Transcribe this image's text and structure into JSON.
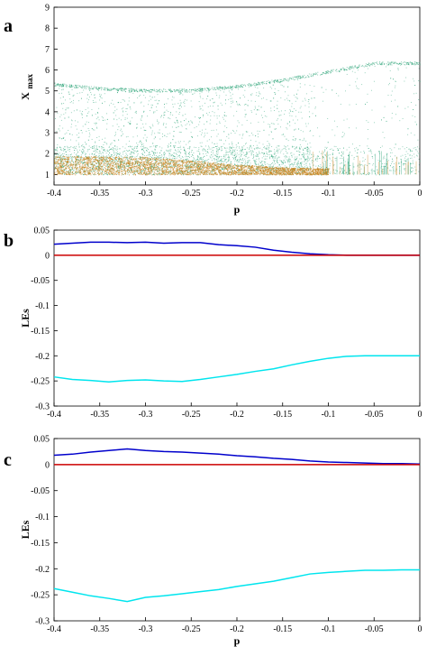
{
  "figure": {
    "panel_labels": [
      "a",
      "b",
      "c"
    ]
  },
  "chart_data": [
    {
      "type": "scatter",
      "panel": "a",
      "xlabel": "p",
      "ylabel": "X",
      "ylabel_subscript": "max",
      "xlim": [
        -0.4,
        0
      ],
      "ylim": [
        0.5,
        9
      ],
      "xticks": [
        "-0.4",
        "-0.35",
        "-0.3",
        "-0.25",
        "-0.2",
        "-0.15",
        "-0.1",
        "-0.05",
        "0"
      ],
      "yticks": [
        "1",
        "2",
        "3",
        "4",
        "5",
        "6",
        "7",
        "8",
        "9"
      ],
      "grid": false,
      "colors": {
        "main": "#1f9e6f",
        "secondary": "#c8851f"
      },
      "series": [
        {
          "points": "green bifurcation cloud, upper envelope x-values",
          "x": [
            -0.4,
            -0.35,
            -0.3,
            -0.25,
            -0.2,
            -0.15,
            -0.1,
            -0.05
          ],
          "y": [
            5.4,
            5.2,
            5.1,
            5.1,
            5.3,
            5.6,
            6.0,
            6.4
          ]
        },
        {
          "points": "orange dense band top",
          "x": [
            -0.4,
            -0.3,
            -0.2,
            -0.15,
            -0.1
          ],
          "y": [
            1.9,
            1.85,
            1.5,
            1.35,
            1.3
          ]
        }
      ]
    },
    {
      "type": "line",
      "panel": "b",
      "xlabel": "",
      "ylabel": "LEs",
      "xlim": [
        -0.4,
        0
      ],
      "ylim": [
        -0.3,
        0.05
      ],
      "xticks": [
        "-0.4",
        "-0.35",
        "-0.3",
        "-0.25",
        "-0.2",
        "-0.15",
        "-0.1",
        "-0.05",
        "0"
      ],
      "yticks": [
        "0.05",
        "0",
        "-0.05",
        "-0.1",
        "-0.15",
        "-0.2",
        "-0.25",
        "-0.3"
      ],
      "grid": false,
      "x": [
        -0.4,
        -0.38,
        -0.36,
        -0.34,
        -0.32,
        -0.3,
        -0.28,
        -0.26,
        -0.24,
        -0.22,
        -0.2,
        -0.18,
        -0.16,
        -0.14,
        -0.12,
        -0.1,
        -0.08,
        -0.06,
        -0.04,
        -0.02,
        0
      ],
      "series": [
        {
          "color": "#0000cc",
          "values": [
            0.022,
            0.024,
            0.026,
            0.026,
            0.025,
            0.026,
            0.024,
            0.025,
            0.025,
            0.021,
            0.019,
            0.016,
            0.01,
            0.006,
            0.003,
            0.001,
            0.0,
            0.0,
            0.0,
            0.0,
            0.0
          ]
        },
        {
          "color": "#cc0000",
          "values": [
            0.0,
            0.0,
            0.0,
            0.0,
            0.0,
            0.0,
            0.0,
            0.0,
            0.0,
            0.0,
            0.0,
            0.0,
            0.0,
            0.0,
            0.0,
            0.0,
            0.0,
            0.0,
            0.0,
            0.0,
            0.0
          ]
        },
        {
          "color": "#00e5ee",
          "values": [
            -0.242,
            -0.247,
            -0.249,
            -0.252,
            -0.249,
            -0.248,
            -0.25,
            -0.251,
            -0.247,
            -0.242,
            -0.237,
            -0.231,
            -0.226,
            -0.218,
            -0.211,
            -0.205,
            -0.201,
            -0.2,
            -0.2,
            -0.2,
            -0.2
          ]
        }
      ]
    },
    {
      "type": "line",
      "panel": "c",
      "xlabel": "p",
      "ylabel": "LEs",
      "xlim": [
        -0.4,
        0
      ],
      "ylim": [
        -0.3,
        0.05
      ],
      "xticks": [
        "-0.4",
        "-0.35",
        "-0.3",
        "-0.25",
        "-0.2",
        "-0.15",
        "-0.1",
        "-0.05",
        "0"
      ],
      "yticks": [
        "0.05",
        "0",
        "-0.05",
        "-0.1",
        "-0.15",
        "-0.2",
        "-0.25",
        "-0.3"
      ],
      "grid": false,
      "x": [
        -0.4,
        -0.38,
        -0.36,
        -0.34,
        -0.32,
        -0.3,
        -0.28,
        -0.26,
        -0.24,
        -0.22,
        -0.2,
        -0.18,
        -0.16,
        -0.14,
        -0.12,
        -0.1,
        -0.08,
        -0.06,
        -0.04,
        -0.02,
        0
      ],
      "series": [
        {
          "color": "#0000cc",
          "values": [
            0.018,
            0.02,
            0.024,
            0.027,
            0.03,
            0.027,
            0.025,
            0.024,
            0.022,
            0.02,
            0.017,
            0.015,
            0.012,
            0.01,
            0.007,
            0.005,
            0.004,
            0.003,
            0.002,
            0.002,
            0.001
          ]
        },
        {
          "color": "#cc0000",
          "values": [
            0.0,
            0.0,
            0.0,
            0.0,
            0.0,
            0.0,
            0.0,
            0.0,
            0.0,
            0.0,
            0.0,
            0.0,
            0.0,
            0.0,
            0.0,
            0.0,
            0.0,
            0.0,
            0.0,
            0.0,
            0.0
          ]
        },
        {
          "color": "#00e5ee",
          "values": [
            -0.238,
            -0.245,
            -0.252,
            -0.257,
            -0.263,
            -0.255,
            -0.252,
            -0.248,
            -0.244,
            -0.24,
            -0.234,
            -0.229,
            -0.224,
            -0.217,
            -0.21,
            -0.207,
            -0.205,
            -0.203,
            -0.203,
            -0.202,
            -0.202
          ]
        }
      ]
    }
  ]
}
